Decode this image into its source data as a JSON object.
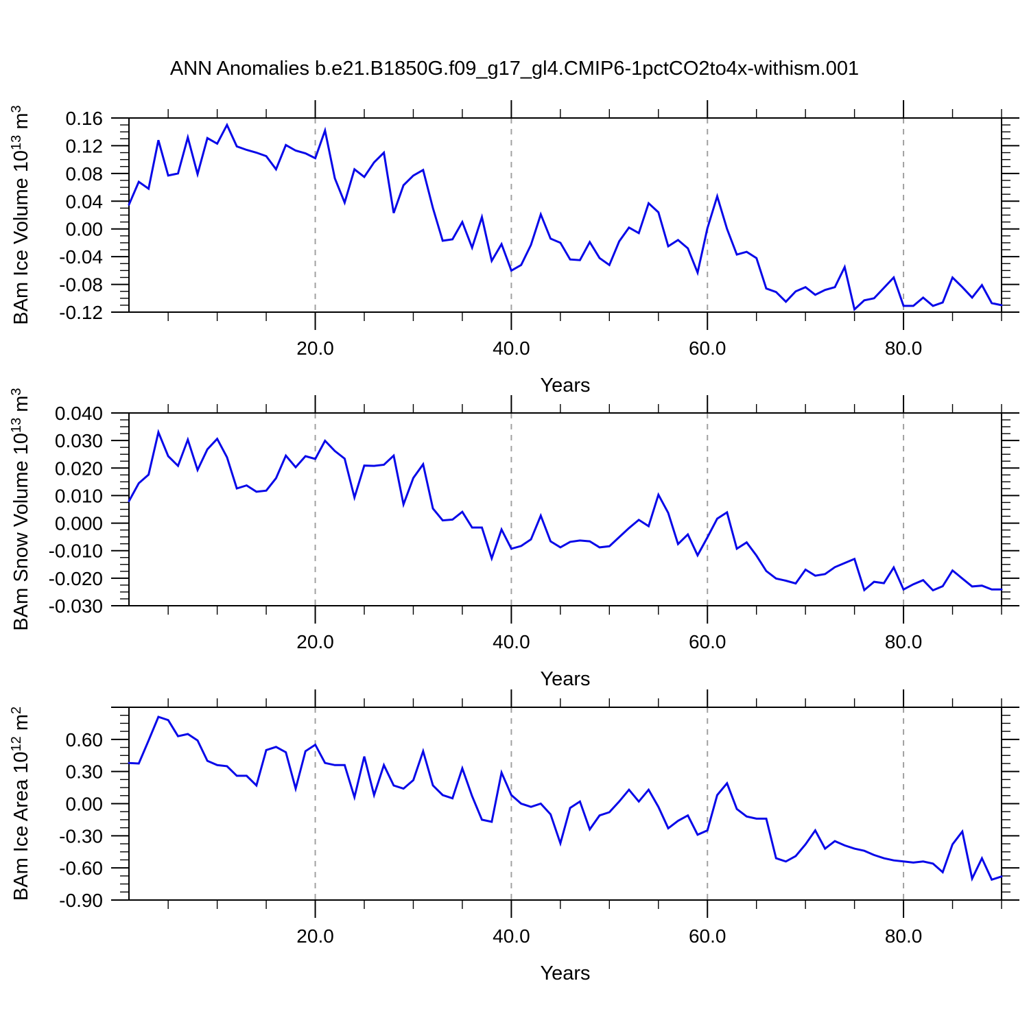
{
  "title": "ANN Anomalies b.e21.B1850G.f09_g17_gl4.CMIP6-1pctCO2to4x-withism.001",
  "colors": {
    "line": "#0808e8",
    "grid": "#a0a0a0",
    "axis": "#000000",
    "background": "#ffffff",
    "text": "#000000"
  },
  "chart_data": [
    {
      "type": "line",
      "id": "ice-volume",
      "ylabel_parts": [
        "BAm Ice Volume 10",
        "13",
        " m",
        "3"
      ],
      "xlabel": "Years",
      "xlim": [
        1,
        90
      ],
      "x_start": 1,
      "x_step": 1,
      "xtick_major": [
        20,
        40,
        60,
        80
      ],
      "xtick_labels": [
        "20.0",
        "40.0",
        "60.0",
        "80.0"
      ],
      "xtick_minor_step": 5,
      "grid_x": [
        20,
        40,
        60,
        80
      ],
      "ylim": [
        -0.12,
        0.16
      ],
      "ytick_major_step": 0.04,
      "ytick_minor_step": 0.01,
      "ytick_decimals": 2,
      "ylabeled_max": 0.16,
      "values": [
        0.035,
        0.068,
        0.058,
        0.128,
        0.077,
        0.08,
        0.132,
        0.079,
        0.131,
        0.123,
        0.15,
        0.119,
        0.114,
        0.11,
        0.105,
        0.086,
        0.121,
        0.113,
        0.109,
        0.102,
        0.142,
        0.073,
        0.038,
        0.086,
        0.075,
        0.096,
        0.11,
        0.023,
        0.063,
        0.077,
        0.085,
        0.03,
        -0.017,
        -0.015,
        0.01,
        -0.027,
        0.017,
        -0.046,
        -0.022,
        -0.06,
        -0.052,
        -0.023,
        0.021,
        -0.014,
        -0.02,
        -0.044,
        -0.045,
        -0.019,
        -0.042,
        -0.052,
        -0.018,
        0.002,
        -0.006,
        0.037,
        0.024,
        -0.025,
        -0.016,
        -0.028,
        -0.063,
        0.001,
        0.047,
        0.0,
        -0.037,
        -0.033,
        -0.042,
        -0.086,
        -0.091,
        -0.105,
        -0.09,
        -0.084,
        -0.095,
        -0.088,
        -0.084,
        -0.055,
        -0.116,
        -0.103,
        -0.1,
        -0.085,
        -0.07,
        -0.111,
        -0.111,
        -0.099,
        -0.111,
        -0.106,
        -0.07,
        -0.084,
        -0.099,
        -0.081,
        -0.107,
        -0.11
      ]
    },
    {
      "type": "line",
      "id": "snow-volume",
      "ylabel_parts": [
        "BAm Snow Volume 10",
        "13",
        " m",
        "3"
      ],
      "xlabel": "Years",
      "xlim": [
        1,
        90
      ],
      "x_start": 1,
      "x_step": 1,
      "xtick_major": [
        20,
        40,
        60,
        80
      ],
      "xtick_labels": [
        "20.0",
        "40.0",
        "60.0",
        "80.0"
      ],
      "xtick_minor_step": 5,
      "grid_x": [
        20,
        40,
        60,
        80
      ],
      "ylim": [
        -0.03,
        0.04
      ],
      "ytick_major_step": 0.01,
      "ytick_minor_step": 0.0025,
      "ytick_decimals": 3,
      "ylabeled_max": 0.04,
      "values": [
        0.008,
        0.0145,
        0.0176,
        0.033,
        0.0243,
        0.0208,
        0.0303,
        0.0193,
        0.0268,
        0.0306,
        0.0239,
        0.0126,
        0.0137,
        0.0114,
        0.0118,
        0.0163,
        0.0245,
        0.0203,
        0.0243,
        0.0233,
        0.0299,
        0.0262,
        0.0234,
        0.0093,
        0.0209,
        0.0208,
        0.0212,
        0.0245,
        0.0068,
        0.0164,
        0.0214,
        0.0053,
        0.001,
        0.0013,
        0.0041,
        -0.0016,
        -0.0016,
        -0.0128,
        -0.0023,
        -0.0093,
        -0.0083,
        -0.0059,
        0.0027,
        -0.0066,
        -0.0088,
        -0.0068,
        -0.0063,
        -0.0066,
        -0.0088,
        -0.0084,
        -0.0051,
        -0.0018,
        0.0012,
        -0.0011,
        0.0103,
        0.0037,
        -0.0076,
        -0.0041,
        -0.0117,
        -0.0052,
        0.0016,
        0.0039,
        -0.0093,
        -0.007,
        -0.0118,
        -0.0174,
        -0.0201,
        -0.0209,
        -0.0219,
        -0.0169,
        -0.0191,
        -0.0185,
        -0.016,
        -0.0145,
        -0.013,
        -0.0243,
        -0.0213,
        -0.0218,
        -0.0161,
        -0.0241,
        -0.0222,
        -0.0207,
        -0.0244,
        -0.0229,
        -0.0172,
        -0.0201,
        -0.023,
        -0.0227,
        -0.0241,
        -0.0241
      ]
    },
    {
      "type": "line",
      "id": "ice-area",
      "ylabel_parts": [
        "BAm Ice Area 10",
        "12",
        " m",
        "2"
      ],
      "xlabel": "Years",
      "xlim": [
        1,
        90
      ],
      "x_start": 1,
      "x_step": 1,
      "xtick_major": [
        20,
        40,
        60,
        80
      ],
      "xtick_labels": [
        "20.0",
        "40.0",
        "60.0",
        "80.0"
      ],
      "xtick_minor_step": 5,
      "grid_x": [
        20,
        40,
        60,
        80
      ],
      "ylim": [
        -0.9,
        0.9
      ],
      "ytick_major_step": 0.3,
      "ytick_minor_step": 0.075,
      "ytick_decimals": 2,
      "ylabeled_max": 0.6,
      "values": [
        0.38,
        0.375,
        0.59,
        0.81,
        0.78,
        0.63,
        0.65,
        0.59,
        0.4,
        0.36,
        0.35,
        0.26,
        0.26,
        0.17,
        0.5,
        0.53,
        0.48,
        0.14,
        0.49,
        0.55,
        0.38,
        0.36,
        0.36,
        0.06,
        0.44,
        0.08,
        0.36,
        0.17,
        0.14,
        0.22,
        0.49,
        0.17,
        0.08,
        0.05,
        0.33,
        0.07,
        -0.15,
        -0.17,
        0.29,
        0.08,
        0.0,
        -0.03,
        0.0,
        -0.1,
        -0.37,
        -0.04,
        0.02,
        -0.24,
        -0.11,
        -0.08,
        0.02,
        0.13,
        0.02,
        0.13,
        -0.03,
        -0.23,
        -0.16,
        -0.11,
        -0.29,
        -0.25,
        0.08,
        0.19,
        -0.05,
        -0.12,
        -0.14,
        -0.14,
        -0.51,
        -0.54,
        -0.49,
        -0.38,
        -0.25,
        -0.42,
        -0.35,
        -0.39,
        -0.42,
        -0.44,
        -0.48,
        -0.51,
        -0.53,
        -0.54,
        -0.55,
        -0.54,
        -0.56,
        -0.64,
        -0.38,
        -0.26,
        -0.7,
        -0.51,
        -0.71,
        -0.68
      ]
    }
  ]
}
